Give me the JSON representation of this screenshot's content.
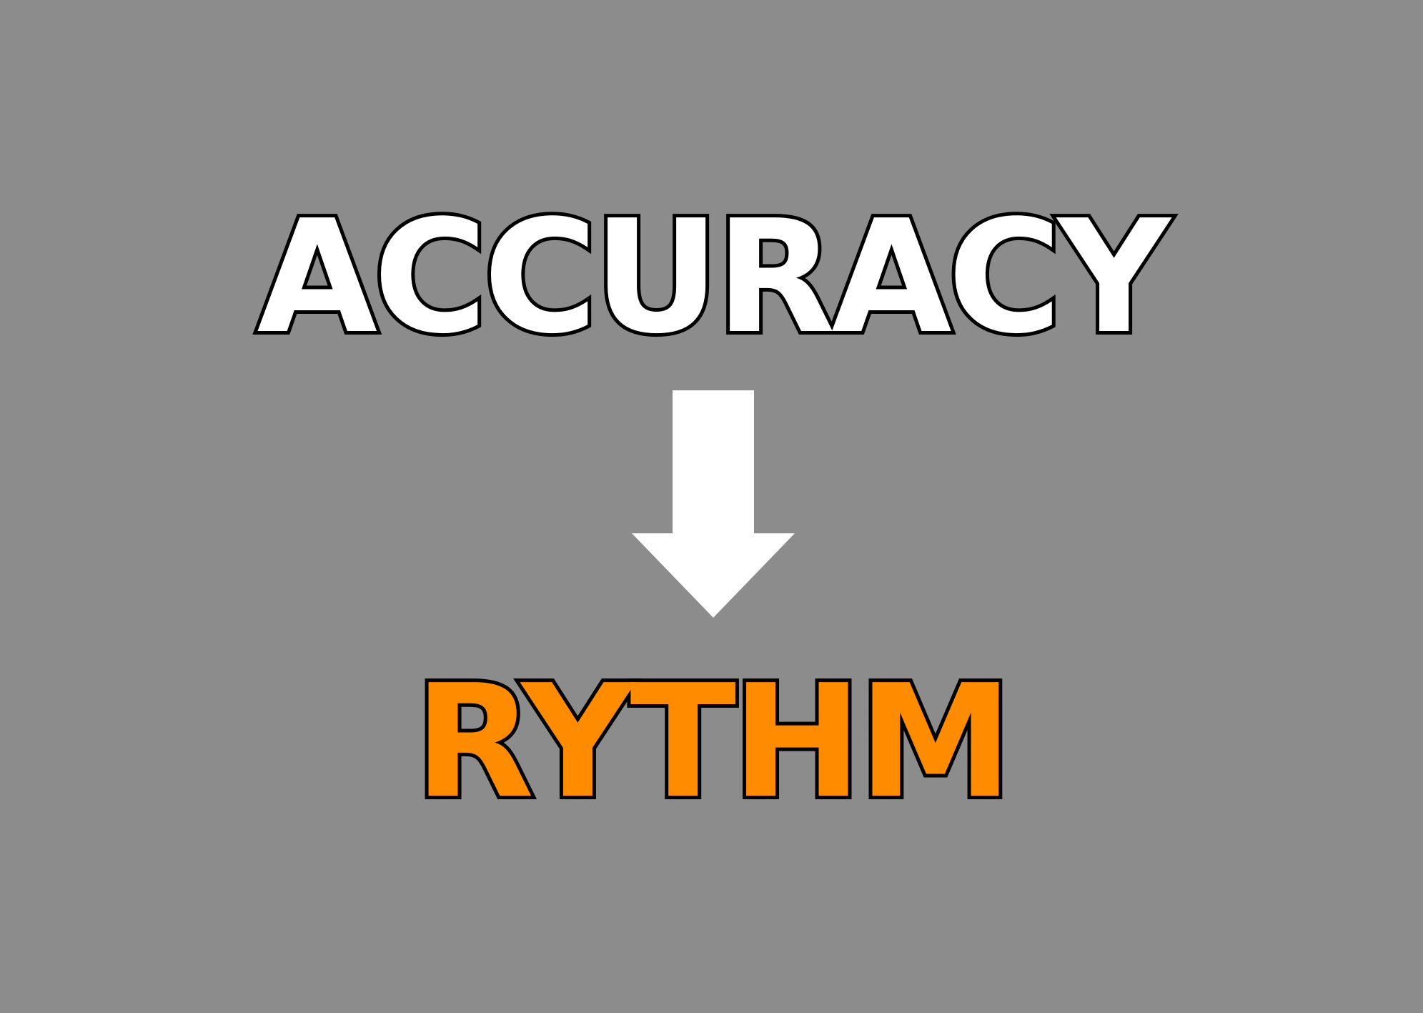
{
  "heading_top": {
    "text": "ACCURACY",
    "color": "#ffffff"
  },
  "connector": {
    "icon": "down-arrow-icon",
    "color": "#ffffff"
  },
  "heading_bottom": {
    "text": "RYTHM",
    "color": "#ff8c00"
  },
  "background_color": "#8c8c8c"
}
